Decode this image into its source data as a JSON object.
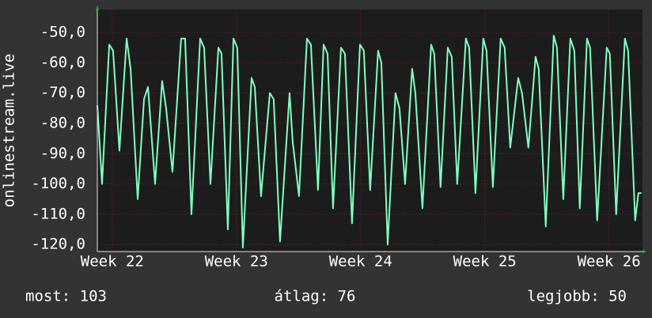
{
  "chart_data": {
    "type": "line",
    "y_label": "onlinestream.live",
    "xlim": [
      21.88,
      26.27
    ],
    "xticks": [
      {
        "value": 22,
        "label": "Week 22"
      },
      {
        "value": 23,
        "label": "Week 23"
      },
      {
        "value": 24,
        "label": "Week 24"
      },
      {
        "value": 25,
        "label": "Week 25"
      },
      {
        "value": 26,
        "label": "Week 26"
      }
    ],
    "ylim": [
      -122.3,
      -42.4
    ],
    "yticks": [
      {
        "value": -120,
        "label": "-120,0"
      },
      {
        "value": -110,
        "label": "-110,0"
      },
      {
        "value": -100,
        "label": "-100,0"
      },
      {
        "value": -90,
        "label": "-90,0"
      },
      {
        "value": -80,
        "label": "-80,0"
      },
      {
        "value": -70,
        "label": "-70,0"
      },
      {
        "value": -60,
        "label": "-60,0"
      },
      {
        "value": -50,
        "label": "-50,0"
      }
    ],
    "grid": true,
    "x": [
      21.88,
      21.918,
      21.976,
      22.007,
      22.058,
      22.116,
      22.148,
      22.205,
      22.256,
      22.288,
      22.345,
      22.402,
      22.434,
      22.485,
      22.555,
      22.587,
      22.638,
      22.708,
      22.74,
      22.791,
      22.855,
      22.88,
      22.931,
      22.976,
      23.007,
      23.052,
      23.122,
      23.148,
      23.198,
      23.269,
      23.3,
      23.351,
      23.428,
      23.453,
      23.504,
      23.568,
      23.6,
      23.657,
      23.702,
      23.734,
      23.778,
      23.842,
      23.874,
      23.931,
      23.995,
      24.026,
      24.077,
      24.141,
      24.167,
      24.218,
      24.281,
      24.313,
      24.358,
      24.415,
      24.441,
      24.498,
      24.568,
      24.593,
      24.644,
      24.702,
      24.734,
      24.778,
      24.848,
      24.874,
      24.925,
      24.988,
      25.014,
      25.065,
      25.128,
      25.16,
      25.205,
      25.269,
      25.3,
      25.351,
      25.409,
      25.434,
      25.491,
      25.555,
      25.581,
      25.632,
      25.689,
      25.721,
      25.765,
      25.823,
      25.848,
      25.905,
      25.982,
      26.007,
      26.058,
      26.128,
      26.154,
      26.211,
      26.237,
      26.262
    ],
    "series": [
      {
        "color": "#80ffc0",
        "values": [
          -74,
          -100,
          -54,
          -56,
          -89,
          -52,
          -62,
          -105,
          -72,
          -68,
          -100,
          -66,
          -75,
          -96,
          -52,
          -52,
          -110,
          -52,
          -55,
          -100,
          -55,
          -57,
          -115,
          -52,
          -55,
          -121,
          -65,
          -68,
          -104,
          -70,
          -72,
          -119,
          -70,
          -86,
          -104,
          -52,
          -54,
          -102,
          -54,
          -57,
          -108,
          -55,
          -57,
          -113,
          -54,
          -56,
          -102,
          -56,
          -60,
          -120,
          -70,
          -75,
          -100,
          -62,
          -70,
          -108,
          -54,
          -57,
          -101,
          -55,
          -58,
          -100,
          -52,
          -55,
          -103,
          -52,
          -56,
          -101,
          -52,
          -55,
          -88,
          -65,
          -70,
          -88,
          -58,
          -62,
          -114,
          -51,
          -55,
          -105,
          -52,
          -56,
          -108,
          -52,
          -55,
          -112,
          -55,
          -57,
          -110,
          -52,
          -56,
          -112,
          -103,
          -103
        ]
      }
    ],
    "footer": [
      "most: 103",
      "átlag: 76",
      "legjobb: 50"
    ]
  }
}
